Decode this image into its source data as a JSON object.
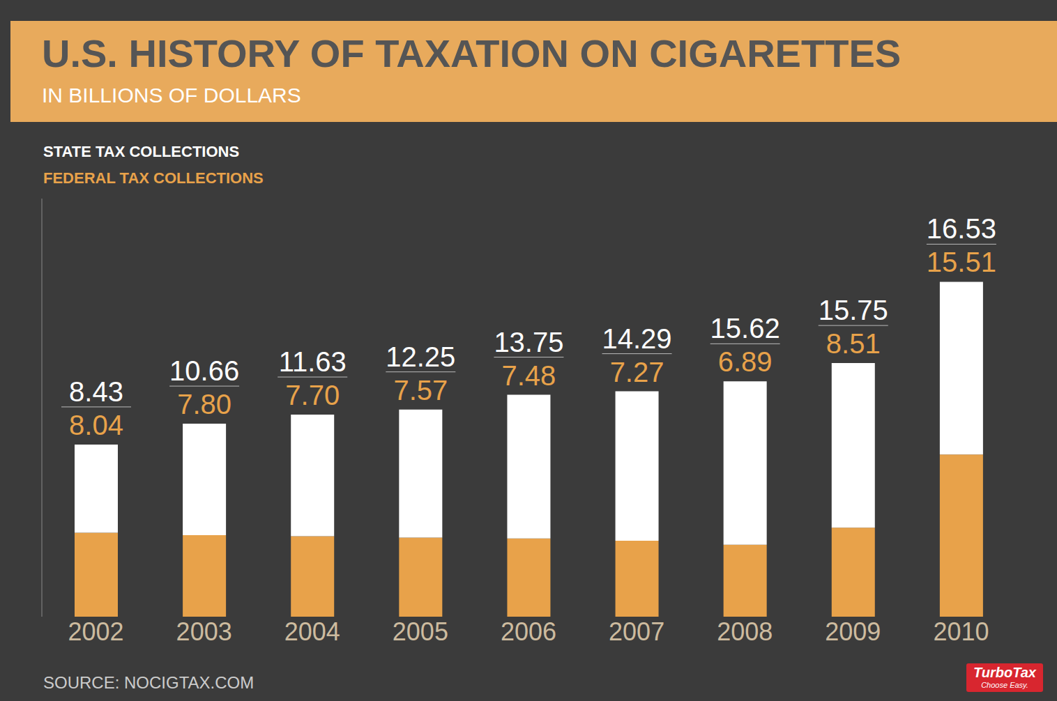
{
  "chart_data": {
    "type": "bar",
    "title": "U.S. HISTORY OF TAXATION ON CIGARETTES",
    "subtitle": "IN BILLIONS OF DOLLARS",
    "source": "SOURCE: NOCIGTAX.COM",
    "brand": "TurboTax",
    "tagline": "Choose Easy.",
    "categories": [
      "2002",
      "2003",
      "2004",
      "2005",
      "2006",
      "2007",
      "2008",
      "2009",
      "2010"
    ],
    "series": [
      {
        "name": "STATE TAX COLLECTIONS",
        "color": "#ffffff",
        "values": [
          8.43,
          10.66,
          11.63,
          12.25,
          13.75,
          14.29,
          15.62,
          15.75,
          16.53
        ],
        "value_labels": [
          "8.43",
          "10.66",
          "11.63",
          "12.25",
          "13.75",
          "14.29",
          "15.62",
          "15.75",
          "16.53"
        ]
      },
      {
        "name": "FEDERAL TAX COLLECTIONS",
        "color": "#e8a24a",
        "values": [
          8.04,
          7.8,
          7.7,
          7.57,
          7.48,
          7.27,
          6.89,
          8.51,
          15.51
        ],
        "value_labels": [
          "8.04",
          "7.80",
          "7.70",
          "7.57",
          "7.48",
          "7.27",
          "6.89",
          "8.51",
          "15.51"
        ]
      }
    ],
    "stacked": true,
    "data_labels": true,
    "legend": "top-left",
    "grid": false,
    "tick_labels": "x",
    "ylim": [
      0,
      40
    ],
    "yticks": []
  }
}
